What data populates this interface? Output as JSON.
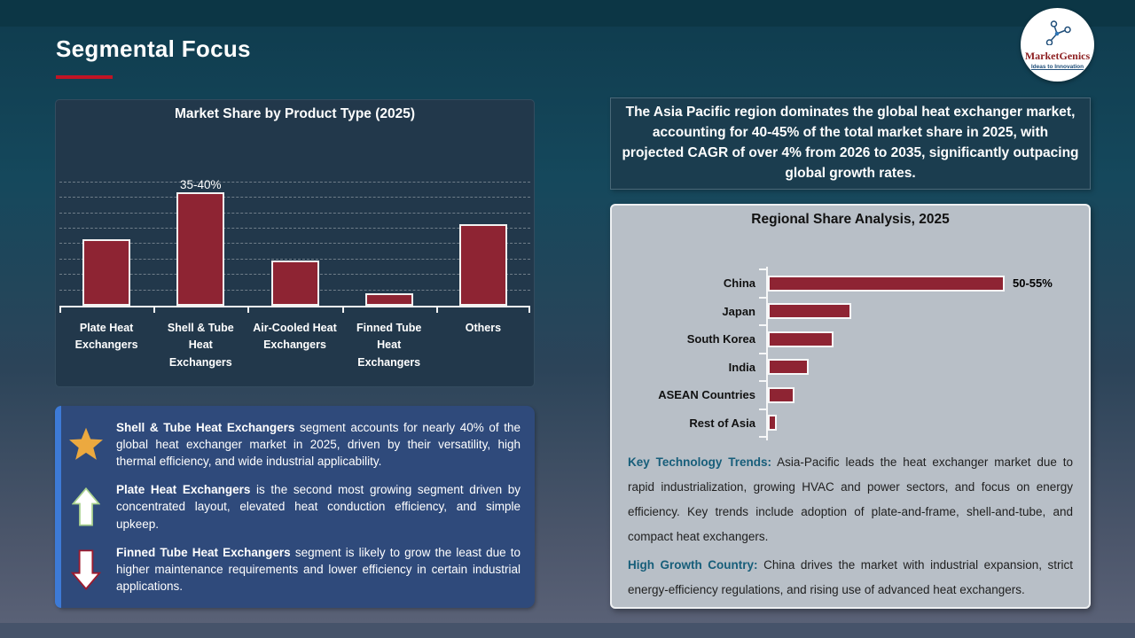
{
  "slide": {
    "title": "Segmental Focus"
  },
  "logo": {
    "name": "MarketGenics",
    "tagline": "Ideas to Innovation"
  },
  "region_header": "The Asia Pacific region dominates the global heat exchanger market, accounting for 40-45% of the total market share in 2025, with projected CAGR of over 4% from 2026 to 2035, significantly outpacing global growth rates.",
  "chart_data": [
    {
      "type": "bar",
      "orientation": "vertical",
      "title": "Market Share by Product Type (2025)",
      "categories": [
        "Plate Heat Exchangers",
        "Shell & Tube Heat Exchangers",
        "Air-Cooled Heat Exchangers",
        "Finned Tube Heat Exchangers",
        "Others"
      ],
      "values": [
        22,
        37.5,
        15,
        4,
        27
      ],
      "unit": "%",
      "data_labels": [
        "",
        "35-40%",
        "",
        "",
        ""
      ],
      "ylim": [
        0,
        41
      ],
      "grid": "dashed-horizontal",
      "bar_color": "#8E2433",
      "bar_border_color": "#F2F2F2",
      "legend": "none"
    },
    {
      "type": "bar",
      "orientation": "horizontal",
      "title": "Regional Share Analysis, 2025",
      "categories": [
        "China",
        "Japan",
        "South Korea",
        "India",
        "ASEAN Countries",
        "Rest of Asia"
      ],
      "values": [
        52.5,
        18.5,
        14.5,
        9,
        6,
        2
      ],
      "unit": "%",
      "data_labels": [
        "50-55%",
        "",
        "",
        "",
        "",
        ""
      ],
      "xlim": [
        0,
        60
      ],
      "grid": "off",
      "bar_color": "#8E2433",
      "bar_border_color": "#F6F7F8",
      "legend": "none"
    }
  ],
  "insights": [
    {
      "icon": "star",
      "bold": "Shell & Tube Heat Exchangers",
      "text": " segment accounts for nearly 40% of the global heat exchanger market in 2025, driven by their versatility, high thermal efficiency, and wide industrial applicability."
    },
    {
      "icon": "arrow-up",
      "bold": "Plate Heat Exchangers",
      "text": " is the second most growing segment driven by concentrated layout, elevated heat conduction efficiency, and simple upkeep."
    },
    {
      "icon": "arrow-down",
      "bold": "Finned Tube Heat Exchangers",
      "text": " segment is likely to grow the least due to higher maintenance requirements and lower efficiency in certain industrial applications."
    }
  ],
  "notes": [
    {
      "label": "Key Technology Trends:",
      "text": " Asia-Pacific leads the heat exchanger market due to rapid industrialization, growing HVAC and power sectors, and focus on energy efficiency. Key trends include adoption of plate-and-frame, shell-and-tube, and compact heat exchangers."
    },
    {
      "label": "High Growth Country:",
      "text": " China drives the market with industrial expansion, strict energy-efficiency regulations, and rising use of advanced heat exchangers."
    }
  ],
  "colors": {
    "bar_maroon": "#8E2433",
    "accent_red_underline": "#C11425",
    "insights_blue": "#2F4A7B",
    "insights_accent_blue": "#3D7AD6",
    "teal_label": "#175E7A",
    "panel_navy": "#22384B",
    "panel_gray": "#B8BFC7",
    "star_gold": "#ECA93F",
    "arrow_green": "#A9D18E",
    "arrow_red": "#9B1B2F"
  }
}
